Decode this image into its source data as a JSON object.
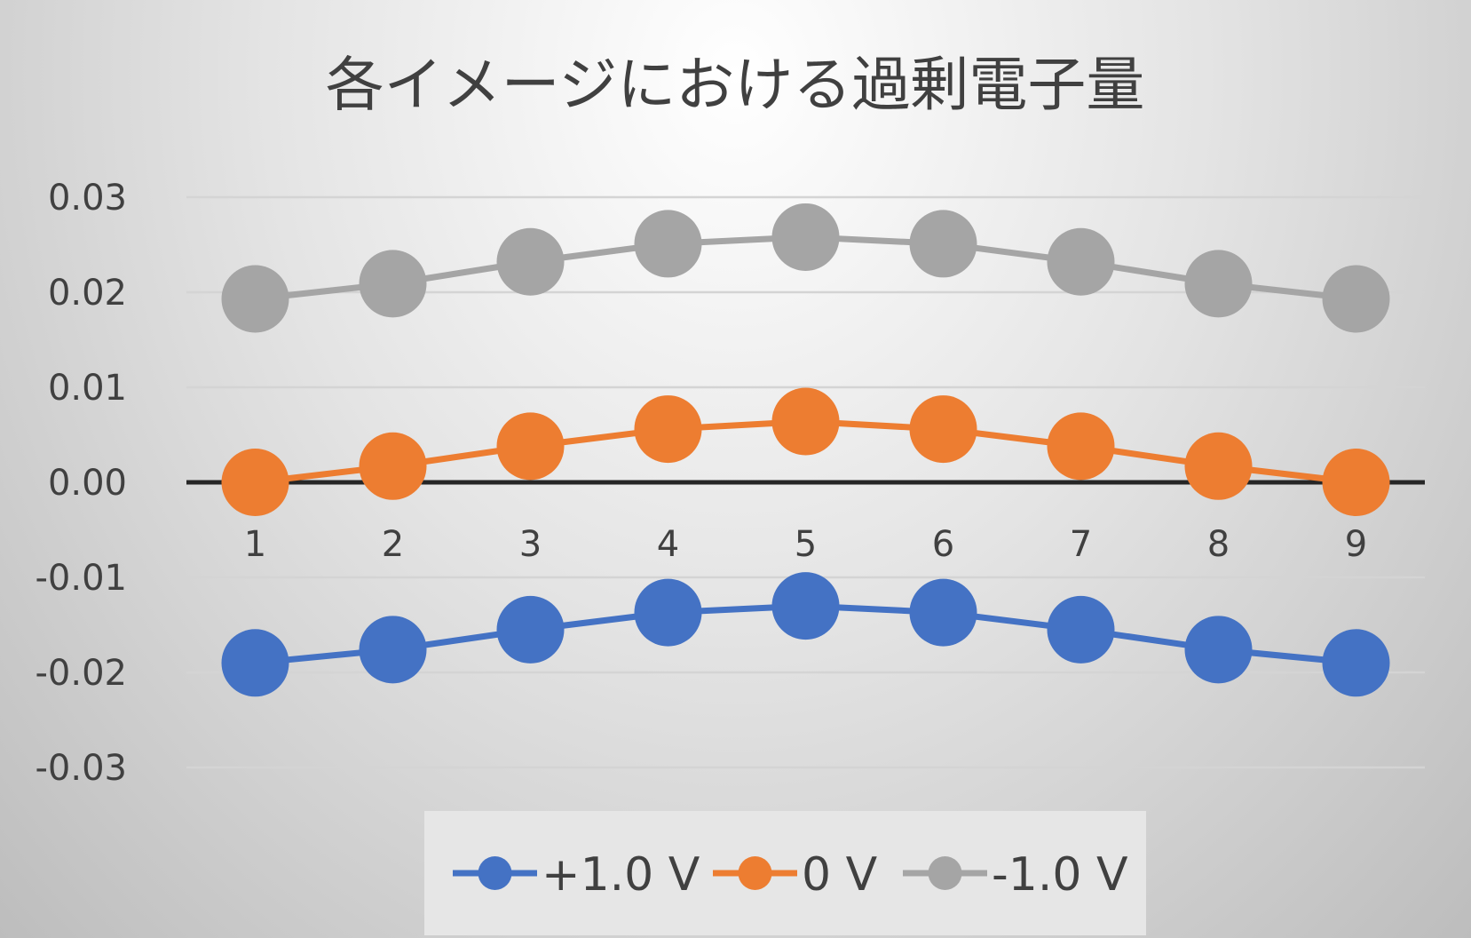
{
  "chart_data": {
    "type": "line",
    "title": "各イメージにおける過剰電子量",
    "xlabel": "",
    "ylabel": "",
    "categories": [
      "1",
      "2",
      "3",
      "4",
      "5",
      "6",
      "7",
      "8",
      "9"
    ],
    "y_ticks": [
      "0.03",
      "0.02",
      "0.01",
      "0.00",
      "-0.01",
      "-0.02",
      "-0.03"
    ],
    "ylim": [
      -0.03,
      0.03
    ],
    "grid": true,
    "legend_position": "bottom",
    "series": [
      {
        "name": "+1.0 V",
        "color": "#4472C4",
        "values": [
          -0.019,
          -0.0176,
          -0.0155,
          -0.0137,
          -0.013,
          -0.0137,
          -0.0155,
          -0.0176,
          -0.019
        ]
      },
      {
        "name": "0 V",
        "color": "#ED7D31",
        "values": [
          0.0,
          0.0017,
          0.0038,
          0.0056,
          0.0064,
          0.0056,
          0.0038,
          0.0017,
          0.0
        ]
      },
      {
        "name": "-1.0 V",
        "color": "#A5A5A5",
        "values": [
          0.0193,
          0.0209,
          0.0232,
          0.0251,
          0.0258,
          0.0251,
          0.0232,
          0.0209,
          0.0193
        ]
      }
    ]
  }
}
